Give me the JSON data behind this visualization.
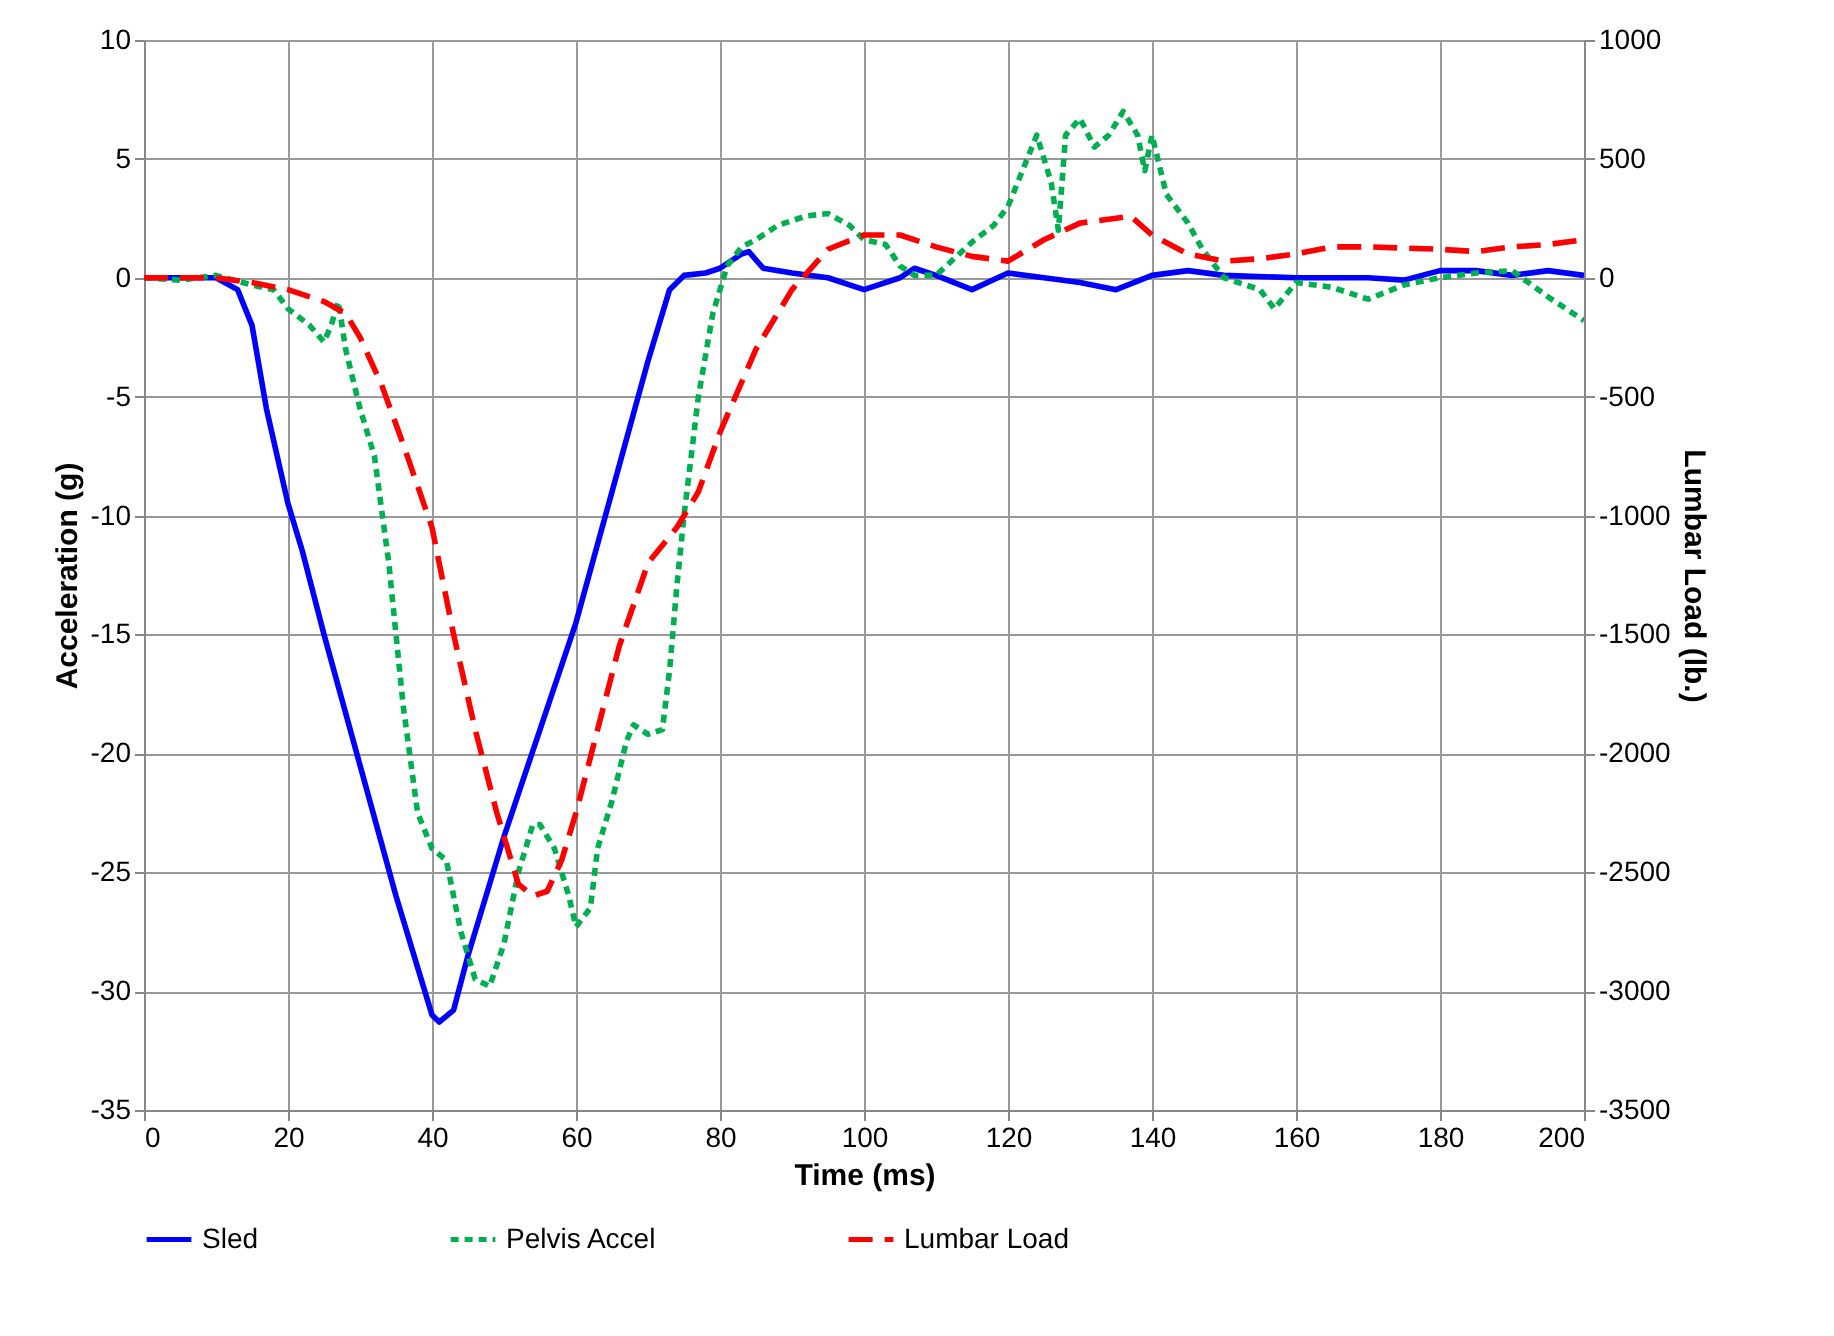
{
  "chart_data": {
    "type": "line",
    "xlabel": "Time (ms)",
    "ylabel": "Acceleration (g)",
    "y2label": "Lumbar Load (lb.)",
    "xlim": [
      0,
      200
    ],
    "xticks": [
      0,
      20,
      40,
      60,
      80,
      100,
      120,
      140,
      160,
      180,
      200
    ],
    "ylim": [
      -35,
      10
    ],
    "yticks": [
      -35,
      -30,
      -25,
      -20,
      -15,
      -10,
      -5,
      0,
      5,
      10
    ],
    "y2lim": [
      -3500,
      1000
    ],
    "y2ticks": [
      -3500,
      -3000,
      -2500,
      -2000,
      -1500,
      -1000,
      -500,
      0,
      500,
      1000
    ],
    "grid": true,
    "legend": "bottom",
    "series": [
      {
        "name": "Sled",
        "color": "#0000ff",
        "line_style": "solid",
        "x": [
          0,
          10,
          13,
          15,
          17,
          20,
          22,
          25,
          30,
          35,
          38,
          40,
          41,
          43,
          45,
          50,
          55,
          60,
          65,
          70,
          73,
          75,
          78,
          80,
          83,
          84,
          86,
          90,
          95,
          100,
          105,
          107,
          110,
          115,
          120,
          125,
          130,
          135,
          140,
          145,
          150,
          160,
          170,
          175,
          180,
          185,
          190,
          195,
          200
        ],
        "values": [
          0,
          0,
          -0.5,
          -2,
          -5.5,
          -9.5,
          -11.5,
          -15,
          -20.5,
          -26,
          -29,
          -31,
          -31.3,
          -30.8,
          -28.5,
          -23.5,
          -19,
          -14.5,
          -9,
          -3.5,
          -0.5,
          0.1,
          0.2,
          0.4,
          1,
          1.1,
          0.4,
          0.2,
          0,
          -0.5,
          0,
          0.4,
          0.1,
          -0.5,
          0.2,
          0,
          -0.2,
          -0.5,
          0.1,
          0.3,
          0.1,
          0,
          0,
          -0.1,
          0.3,
          0.3,
          0.1,
          0.3,
          0.1
        ]
      },
      {
        "name": "Pelvis Accel",
        "color": "#00b050",
        "line_style": "dotted",
        "x": [
          0,
          5,
          10,
          15,
          18,
          20,
          23,
          25,
          26,
          27,
          28,
          30,
          32,
          34,
          36,
          38,
          40,
          42,
          44,
          46,
          48,
          50,
          52,
          54,
          55,
          57,
          59,
          60,
          62,
          63,
          65,
          67,
          68,
          70,
          72,
          73,
          74,
          75,
          77,
          79,
          81,
          83,
          85,
          88,
          92,
          95,
          98,
          100,
          103,
          105,
          107,
          110,
          115,
          118,
          120,
          122,
          124,
          126,
          127,
          128,
          130,
          132,
          134,
          136,
          138,
          139,
          140,
          142,
          145,
          147,
          150,
          155,
          157,
          160,
          165,
          170,
          175,
          180,
          185,
          190,
          195,
          200
        ],
        "values": [
          0,
          -0.1,
          0.1,
          -0.3,
          -0.5,
          -1.3,
          -2,
          -2.7,
          -2,
          -1,
          -3,
          -5.5,
          -7.5,
          -12,
          -18,
          -22.5,
          -24,
          -24.5,
          -27.5,
          -29.5,
          -29.8,
          -28,
          -25,
          -23,
          -23,
          -24,
          -26,
          -27.3,
          -26.5,
          -24,
          -22,
          -19.5,
          -18.8,
          -19.2,
          -19,
          -16.5,
          -13,
          -10,
          -5,
          -1.5,
          0.5,
          1.3,
          1.6,
          2.2,
          2.6,
          2.7,
          2.2,
          1.6,
          1.4,
          0.5,
          0.1,
          0.1,
          1.5,
          2.2,
          3,
          4.5,
          6,
          4,
          2,
          6,
          6.7,
          5.5,
          6,
          7,
          6,
          4.5,
          6,
          3.5,
          2.3,
          1.2,
          0,
          -0.5,
          -1.3,
          -0.2,
          -0.4,
          -0.9,
          -0.3,
          0,
          0.2,
          0.3,
          -0.8,
          -1.8
        ]
      },
      {
        "name": "Lumbar Load",
        "color": "#ff0000",
        "line_style": "dashed",
        "axis": "y2",
        "x": [
          0,
          10,
          15,
          20,
          25,
          28,
          30,
          33,
          36,
          40,
          43,
          46,
          49,
          52,
          54,
          56,
          58,
          60,
          63,
          66,
          70,
          74,
          77,
          80,
          85,
          90,
          95,
          100,
          105,
          110,
          115,
          120,
          125,
          130,
          135,
          137,
          140,
          145,
          150,
          155,
          160,
          165,
          170,
          180,
          185,
          190,
          195,
          200
        ],
        "values": [
          0,
          0,
          -20,
          -50,
          -100,
          -150,
          -250,
          -450,
          -700,
          -1050,
          -1500,
          -1900,
          -2250,
          -2550,
          -2600,
          -2580,
          -2450,
          -2250,
          -1900,
          -1550,
          -1200,
          -1050,
          -900,
          -650,
          -300,
          -50,
          120,
          180,
          180,
          130,
          90,
          70,
          160,
          230,
          250,
          260,
          180,
          100,
          70,
          80,
          100,
          130,
          130,
          120,
          110,
          130,
          140,
          160
        ]
      }
    ]
  }
}
